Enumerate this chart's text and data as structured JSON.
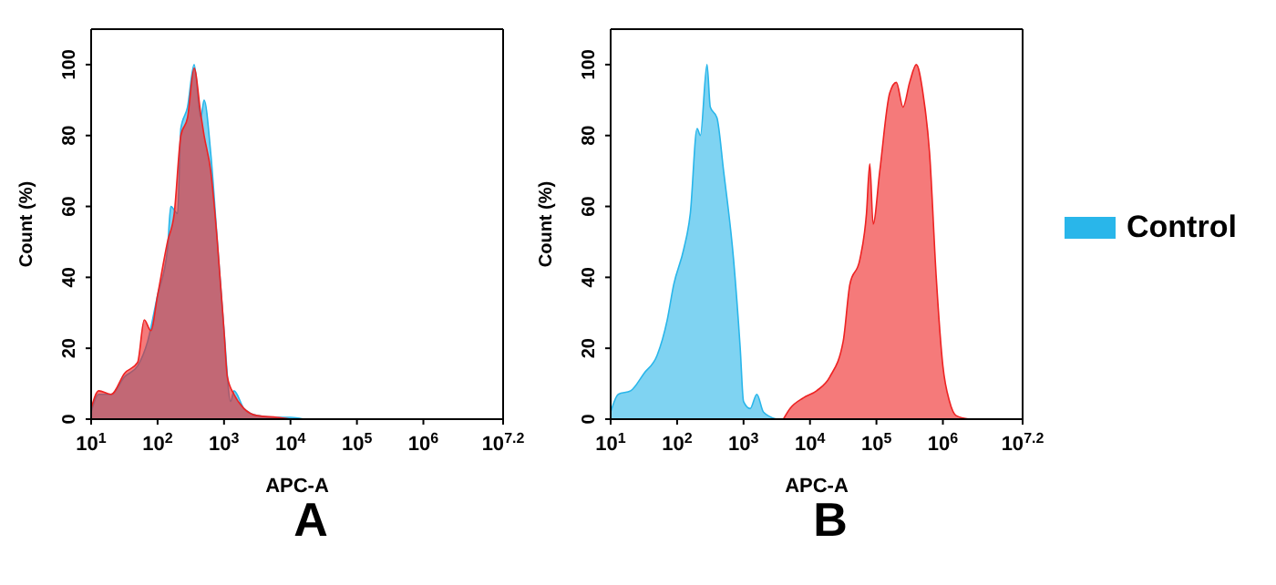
{
  "chart_data": [
    {
      "type": "area",
      "title": "A",
      "xlabel": "APC-A",
      "ylabel": "Count  (%)",
      "log": "x",
      "xlim": [
        10,
        15848932
      ],
      "xticks": [
        {
          "value": 10,
          "label": "10$^{1}$"
        },
        {
          "value": 100,
          "label": "10$^{2}$"
        },
        {
          "value": 1000,
          "label": "10$^{3}$"
        },
        {
          "value": 10000,
          "label": "10$^{4}$"
        },
        {
          "value": 100000,
          "label": "10$^{5}$"
        },
        {
          "value": 1000000,
          "label": "10$^{6}$"
        },
        {
          "value": 15848932,
          "label": "10$^{7.2}$"
        }
      ],
      "ylim": [
        0,
        110
      ],
      "yticks": [
        0,
        20,
        40,
        60,
        80,
        100
      ],
      "series": [
        {
          "color": "#29b6ea",
          "x": [
            10,
            13,
            20,
            32,
            50,
            71,
            100,
            141,
            158,
            200,
            224,
            282,
            355,
            447,
            501,
            631,
            794,
            1000,
            1259,
            1413,
            1995,
            3162,
            6310,
            10000,
            15849
          ],
          "values": [
            2,
            7,
            7,
            12,
            15,
            22,
            35,
            48,
            60,
            58,
            82,
            88,
            100,
            85,
            90,
            75,
            50,
            25,
            5,
            8,
            3,
            1,
            0.5,
            0.5,
            0
          ]
        },
        {
          "color": "#ee2222",
          "x": [
            10,
            13,
            20,
            32,
            50,
            63,
            79,
            100,
            141,
            178,
            224,
            282,
            355,
            447,
            501,
            631,
            794,
            1000,
            1122,
            1413,
            1995,
            3162,
            6310,
            10000
          ],
          "values": [
            3,
            8,
            7,
            13,
            16,
            28,
            25,
            35,
            50,
            58,
            80,
            85,
            99,
            86,
            80,
            70,
            50,
            25,
            12,
            7,
            3,
            1,
            0.5,
            0
          ]
        }
      ]
    },
    {
      "type": "area",
      "title": "B",
      "xlabel": "APC-A",
      "ylabel": "Count  (%)",
      "log": "x",
      "legend": "right",
      "xlim": [
        10,
        15848932
      ],
      "xticks": [
        {
          "value": 10,
          "label": "10$^{1}$"
        },
        {
          "value": 100,
          "label": "10$^{2}$"
        },
        {
          "value": 1000,
          "label": "10$^{3}$"
        },
        {
          "value": 10000,
          "label": "10$^{4}$"
        },
        {
          "value": 100000,
          "label": "10$^{5}$"
        },
        {
          "value": 1000000,
          "label": "10$^{6}$"
        },
        {
          "value": 15848932,
          "label": "10$^{7.2}$"
        }
      ],
      "ylim": [
        0,
        110
      ],
      "yticks": [
        0,
        20,
        40,
        60,
        80,
        100
      ],
      "series": [
        {
          "name": "Control",
          "color": "#29b6ea",
          "x": [
            10,
            13,
            20,
            32,
            50,
            71,
            89,
            126,
            158,
            200,
            224,
            282,
            316,
            398,
            501,
            708,
            891,
            1000,
            1259,
            1585,
            1995,
            3162
          ],
          "values": [
            2,
            7,
            8,
            13,
            18,
            28,
            38,
            48,
            58,
            82,
            80,
            100,
            88,
            85,
            70,
            45,
            20,
            5,
            3,
            7,
            2,
            0
          ]
        },
        {
          "color": "#ee2222",
          "x": [
            3981,
            5012,
            7943,
            12589,
            19953,
            31623,
            39811,
            56234,
            70795,
            79433,
            89125,
            112202,
            158489,
            199526,
            251189,
            316228,
            398107,
            501187,
            630957,
            794328,
            1000000,
            1258925,
            1584893,
            2511886
          ],
          "values": [
            0,
            3,
            6,
            8,
            12,
            22,
            38,
            45,
            58,
            72,
            55,
            70,
            92,
            95,
            88,
            95,
            100,
            92,
            75,
            40,
            15,
            5,
            1,
            0
          ]
        }
      ]
    }
  ]
}
